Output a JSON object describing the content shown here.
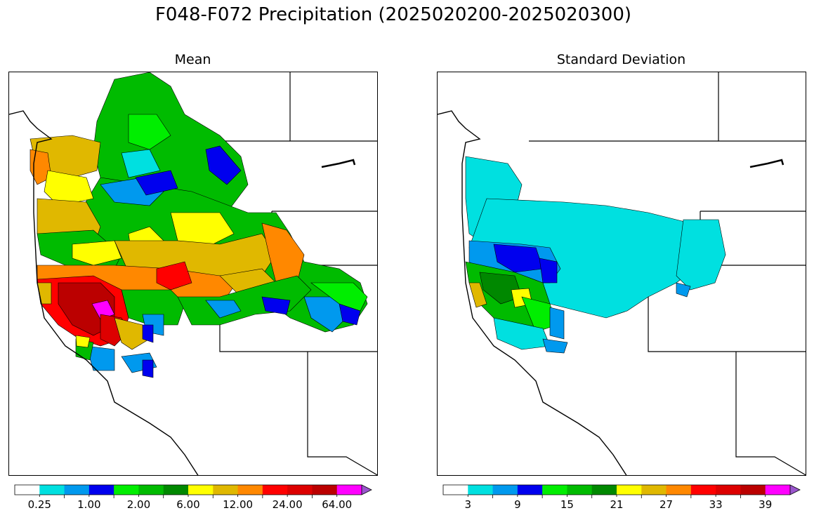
{
  "figure": {
    "title": "F048-F072 Precipitation (2025020200-2025020300)"
  },
  "panels": [
    {
      "title": "Mean",
      "colorbar": {
        "colors": [
          "#ffffff",
          "#00e0e0",
          "#0099ee",
          "#0000ee",
          "#00ee00",
          "#00bb00",
          "#008800",
          "#ffff00",
          "#e0b800",
          "#ff8800",
          "#ff0000",
          "#dd0000",
          "#bb0000",
          "#ff00ff",
          "#9955cc"
        ],
        "tick_labels": [
          "0.25",
          "1.00",
          "2.00",
          "6.00",
          "12.00",
          "24.00",
          "64.00"
        ]
      }
    },
    {
      "title": "Standard Deviation",
      "colorbar": {
        "colors": [
          "#ffffff",
          "#00e0e0",
          "#0099ee",
          "#0000ee",
          "#00ee00",
          "#00bb00",
          "#008800",
          "#ffff00",
          "#e0b800",
          "#ff8800",
          "#ff0000",
          "#dd0000",
          "#bb0000",
          "#ff00ff",
          "#9955cc"
        ],
        "tick_labels": [
          "3",
          "9",
          "15",
          "21",
          "27",
          "33",
          "39"
        ]
      }
    }
  ]
}
